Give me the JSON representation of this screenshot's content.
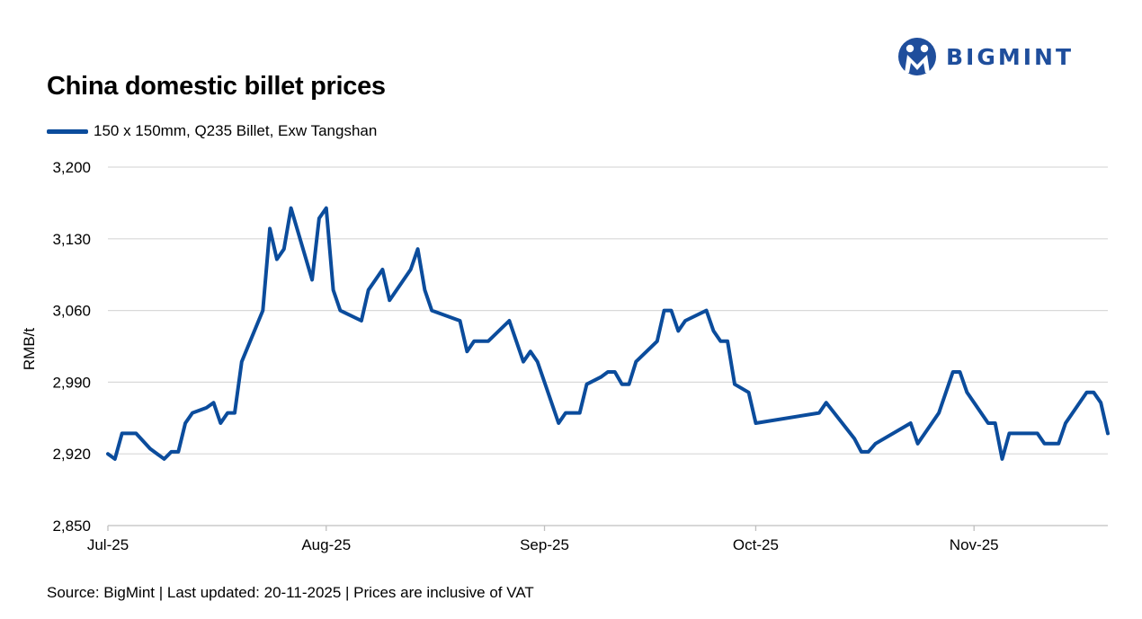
{
  "logo": {
    "text": "BIGMINT",
    "color": "#1f4e9c"
  },
  "footer": {
    "text": "Source: BigMint | Last updated: 20-11-2025 | Prices are inclusive of VAT"
  },
  "chart_data": {
    "type": "line",
    "title": "China domestic billet prices",
    "xlabel": "",
    "ylabel": "RMB/t",
    "ylim": [
      2850,
      3200
    ],
    "yticks": [
      2850,
      2920,
      2990,
      3060,
      3130,
      3200
    ],
    "ytick_labels": [
      "2,850",
      "2,920",
      "2,990",
      "3,060",
      "3,130",
      "3,200"
    ],
    "xlim": [
      "2025-07-01",
      "2025-11-20"
    ],
    "xticks": [
      "2025-07-01",
      "2025-08-01",
      "2025-09-01",
      "2025-10-01",
      "2025-11-01"
    ],
    "xtick_labels": [
      "Jul-25",
      "Aug-25",
      "Sep-25",
      "Oct-25",
      "Nov-25"
    ],
    "grid": "horizontal",
    "legend_position": "top-left",
    "series": [
      {
        "name": "150 x 150mm, Q235 Billet, Exw Tangshan",
        "color": "#0b4c9c",
        "points": [
          [
            "2025-07-01",
            2920
          ],
          [
            "2025-07-02",
            2915
          ],
          [
            "2025-07-03",
            2940
          ],
          [
            "2025-07-04",
            2940
          ],
          [
            "2025-07-05",
            2940
          ],
          [
            "2025-07-08",
            2920
          ],
          [
            "2025-07-07",
            2925
          ],
          [
            "2025-07-09",
            2915
          ],
          [
            "2025-07-10",
            2922
          ],
          [
            "2025-07-11",
            2922
          ],
          [
            "2025-07-12",
            2950
          ],
          [
            "2025-07-13",
            2960
          ],
          [
            "2025-07-15",
            2965
          ],
          [
            "2025-07-16",
            2970
          ],
          [
            "2025-07-17",
            2950
          ],
          [
            "2025-07-18",
            2960
          ],
          [
            "2025-07-19",
            2960
          ],
          [
            "2025-07-20",
            3010
          ],
          [
            "2025-07-23",
            3060
          ],
          [
            "2025-07-24",
            3140
          ],
          [
            "2025-07-25",
            3110
          ],
          [
            "2025-07-26",
            3120
          ],
          [
            "2025-07-27",
            3160
          ],
          [
            "2025-07-30",
            3090
          ],
          [
            "2025-07-31",
            3150
          ],
          [
            "2025-08-01",
            3160
          ],
          [
            "2025-08-02",
            3080
          ],
          [
            "2025-08-03",
            3060
          ],
          [
            "2025-08-06",
            3050
          ],
          [
            "2025-08-07",
            3080
          ],
          [
            "2025-08-08",
            3090
          ],
          [
            "2025-08-09",
            3100
          ],
          [
            "2025-08-10",
            3070
          ],
          [
            "2025-08-13",
            3100
          ],
          [
            "2025-08-14",
            3120
          ],
          [
            "2025-08-15",
            3080
          ],
          [
            "2025-08-16",
            3060
          ],
          [
            "2025-08-20",
            3050
          ],
          [
            "2025-08-21",
            3020
          ],
          [
            "2025-08-22",
            3030
          ],
          [
            "2025-08-24",
            3030
          ],
          [
            "2025-08-27",
            3050
          ],
          [
            "2025-08-28",
            3030
          ],
          [
            "2025-08-29",
            3010
          ],
          [
            "2025-08-30",
            3020
          ],
          [
            "2025-08-31",
            3010
          ],
          [
            "2025-09-03",
            2950
          ],
          [
            "2025-09-04",
            2960
          ],
          [
            "2025-09-05",
            2960
          ],
          [
            "2025-09-06",
            2960
          ],
          [
            "2025-09-07",
            2988
          ],
          [
            "2025-09-09",
            2995
          ],
          [
            "2025-09-10",
            3000
          ],
          [
            "2025-09-11",
            3000
          ],
          [
            "2025-09-12",
            2988
          ],
          [
            "2025-09-13",
            2988
          ],
          [
            "2025-09-14",
            3010
          ],
          [
            "2025-09-17",
            3030
          ],
          [
            "2025-09-18",
            3060
          ],
          [
            "2025-09-19",
            3060
          ],
          [
            "2025-09-20",
            3040
          ],
          [
            "2025-09-21",
            3050
          ],
          [
            "2025-09-24",
            3060
          ],
          [
            "2025-09-25",
            3040
          ],
          [
            "2025-09-26",
            3030
          ],
          [
            "2025-09-27",
            3030
          ],
          [
            "2025-09-28",
            2988
          ],
          [
            "2025-09-30",
            2980
          ],
          [
            "2025-10-01",
            2950
          ],
          [
            "2025-10-10",
            2960
          ],
          [
            "2025-10-11",
            2970
          ],
          [
            "2025-10-15",
            2935
          ],
          [
            "2025-10-16",
            2922
          ],
          [
            "2025-10-17",
            2922
          ],
          [
            "2025-10-18",
            2930
          ],
          [
            "2025-10-23",
            2950
          ],
          [
            "2025-10-24",
            2930
          ],
          [
            "2025-10-27",
            2960
          ],
          [
            "2025-10-29",
            3000
          ],
          [
            "2025-10-30",
            3000
          ],
          [
            "2025-10-31",
            2980
          ],
          [
            "2025-11-03",
            2950
          ],
          [
            "2025-11-04",
            2950
          ],
          [
            "2025-11-05",
            2915
          ],
          [
            "2025-11-06",
            2940
          ],
          [
            "2025-11-10",
            2940
          ],
          [
            "2025-11-11",
            2930
          ],
          [
            "2025-11-13",
            2930
          ],
          [
            "2025-11-14",
            2950
          ],
          [
            "2025-11-17",
            2980
          ],
          [
            "2025-11-18",
            2980
          ],
          [
            "2025-11-19",
            2970
          ],
          [
            "2025-11-20",
            2940
          ]
        ]
      }
    ]
  }
}
